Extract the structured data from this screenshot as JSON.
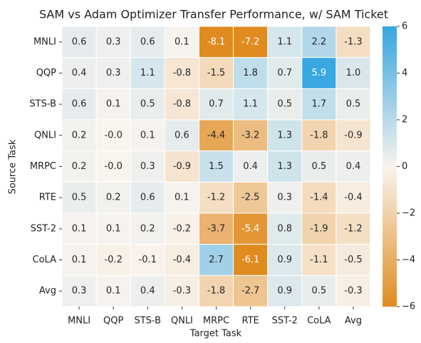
{
  "chart_data": {
    "type": "heatmap",
    "title": "SAM vs Adam Optimizer Transfer Performance, w/ SAM Ticket",
    "xlabel": "Target Task",
    "ylabel": "Source Task",
    "x_categories": [
      "MNLI",
      "QQP",
      "STS-B",
      "QNLI",
      "MRPC",
      "RTE",
      "SST-2",
      "CoLA",
      "Avg"
    ],
    "y_categories": [
      "MNLI",
      "QQP",
      "STS-B",
      "QNLI",
      "MRPC",
      "RTE",
      "SST-2",
      "CoLA",
      "Avg"
    ],
    "values": [
      [
        0.6,
        0.3,
        0.6,
        0.1,
        -8.1,
        -7.2,
        1.1,
        2.2,
        -1.3
      ],
      [
        0.4,
        0.3,
        1.1,
        -0.8,
        -1.5,
        1.8,
        0.7,
        5.9,
        1.0
      ],
      [
        0.6,
        0.1,
        0.5,
        -0.8,
        0.7,
        1.1,
        0.5,
        1.7,
        0.5
      ],
      [
        0.2,
        -0.0,
        0.1,
        0.6,
        -4.4,
        -3.2,
        1.3,
        -1.8,
        -0.9
      ],
      [
        0.2,
        -0.0,
        0.3,
        -0.9,
        1.5,
        0.4,
        1.3,
        0.5,
        0.4
      ],
      [
        0.5,
        0.2,
        0.6,
        0.1,
        -1.2,
        -2.5,
        0.3,
        -1.4,
        -0.4
      ],
      [
        0.1,
        0.1,
        0.2,
        -0.2,
        -3.7,
        -5.4,
        0.8,
        -1.9,
        -1.2
      ],
      [
        0.1,
        -0.2,
        -0.1,
        -0.4,
        2.7,
        -6.1,
        0.9,
        -1.1,
        -0.5
      ],
      [
        0.3,
        0.1,
        0.4,
        -0.3,
        -1.8,
        -2.7,
        0.9,
        0.5,
        -0.3
      ]
    ],
    "value_labels": [
      [
        "0.6",
        "0.3",
        "0.6",
        "0.1",
        "-8.1",
        "-7.2",
        "1.1",
        "2.2",
        "-1.3"
      ],
      [
        "0.4",
        "0.3",
        "1.1",
        "-0.8",
        "-1.5",
        "1.8",
        "0.7",
        "5.9",
        "1.0"
      ],
      [
        "0.6",
        "0.1",
        "0.5",
        "-0.8",
        "0.7",
        "1.1",
        "0.5",
        "1.7",
        "0.5"
      ],
      [
        "0.2",
        "-0.0",
        "0.1",
        "0.6",
        "-4.4",
        "-3.2",
        "1.3",
        "-1.8",
        "-0.9"
      ],
      [
        "0.2",
        "-0.0",
        "0.3",
        "-0.9",
        "1.5",
        "0.4",
        "1.3",
        "0.5",
        "0.4"
      ],
      [
        "0.5",
        "0.2",
        "0.6",
        "0.1",
        "-1.2",
        "-2.5",
        "0.3",
        "-1.4",
        "-0.4"
      ],
      [
        "0.1",
        "0.1",
        "0.2",
        "-0.2",
        "-3.7",
        "-5.4",
        "0.8",
        "-1.9",
        "-1.2"
      ],
      [
        "0.1",
        "-0.2",
        "-0.1",
        "-0.4",
        "2.7",
        "-6.1",
        "0.9",
        "-1.1",
        "-0.5"
      ],
      [
        "0.3",
        "0.1",
        "0.4",
        "-0.3",
        "-1.8",
        "-2.7",
        "0.9",
        "0.5",
        "-0.3"
      ]
    ],
    "zlim": [
      -6,
      6
    ],
    "colorbar_ticks": [
      {
        "value": -6,
        "label": "−6"
      },
      {
        "value": -4,
        "label": "−4"
      },
      {
        "value": -2,
        "label": "−2"
      },
      0,
      2,
      4,
      6
    ],
    "colormap": [
      "#e08b20",
      "#f9f4ee",
      "#36a6e1"
    ]
  }
}
